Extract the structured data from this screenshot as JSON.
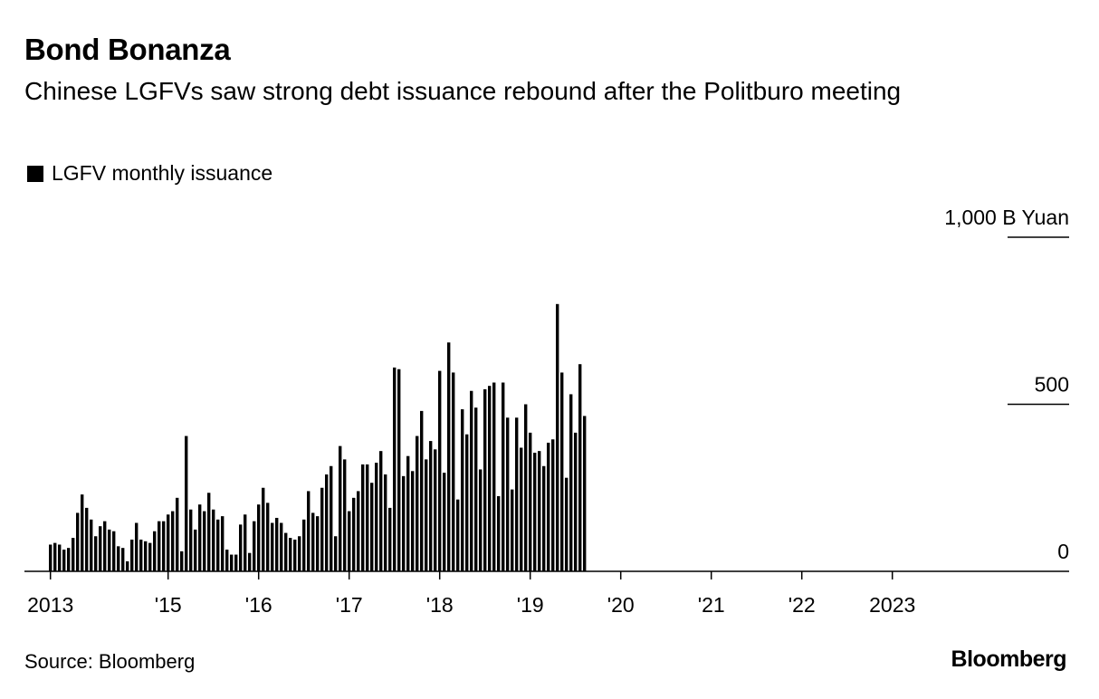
{
  "header": {
    "title": "Bond Bonanza",
    "subtitle": "Chinese LGFVs saw strong debt issuance rebound after the Politburo meeting"
  },
  "legend": {
    "label": "LGFV monthly issuance",
    "color": "#000000"
  },
  "footer": {
    "source": "Source: Bloomberg",
    "brand": "Bloomberg"
  },
  "chart_data": {
    "type": "bar",
    "title": "Bond Bonanza",
    "subtitle": "Chinese LGFVs saw strong debt issuance rebound after the Politburo meeting",
    "ylabel": "B Yuan",
    "ylim": [
      0,
      1000
    ],
    "y_ticks": [
      {
        "value": 0,
        "label": "0"
      },
      {
        "value": 500,
        "label": "500"
      },
      {
        "value": 1000,
        "label": "1,000 B Yuan"
      }
    ],
    "x_ticks": [
      {
        "index": 0,
        "label": "2013"
      },
      {
        "index": 26,
        "label": "'15"
      },
      {
        "index": 46,
        "label": "'16"
      },
      {
        "index": 66,
        "label": "'17"
      },
      {
        "index": 86,
        "label": "'18"
      },
      {
        "index": 106,
        "label": "'19"
      },
      {
        "index": 126,
        "label": "'20"
      },
      {
        "index": 146,
        "label": "'21"
      },
      {
        "index": 166,
        "label": "'22"
      },
      {
        "index": 186,
        "label": "2023"
      }
    ],
    "grid": false,
    "bar_color": "#000000",
    "series": [
      {
        "name": "LGFV monthly issuance",
        "values": [
          80,
          85,
          80,
          65,
          70,
          100,
          175,
          230,
          190,
          155,
          105,
          135,
          150,
          125,
          120,
          75,
          70,
          30,
          95,
          145,
          95,
          90,
          85,
          120,
          150,
          150,
          170,
          180,
          220,
          60,
          405,
          185,
          125,
          200,
          180,
          235,
          185,
          155,
          165,
          65,
          50,
          50,
          140,
          170,
          55,
          150,
          200,
          250,
          205,
          145,
          160,
          145,
          115,
          100,
          95,
          105,
          155,
          240,
          175,
          165,
          250,
          290,
          315,
          105,
          375,
          335,
          180,
          220,
          240,
          320,
          320,
          265,
          325,
          360,
          290,
          190,
          610,
          605,
          285,
          345,
          300,
          405,
          480,
          335,
          390,
          365,
          600,
          295,
          685,
          595,
          215,
          485,
          410,
          540,
          490,
          305,
          545,
          555,
          565,
          225,
          565,
          460,
          245,
          460,
          370,
          500,
          415,
          355,
          360,
          315,
          385,
          395,
          800,
          595,
          280,
          530,
          415,
          620,
          465
        ]
      }
    ]
  }
}
